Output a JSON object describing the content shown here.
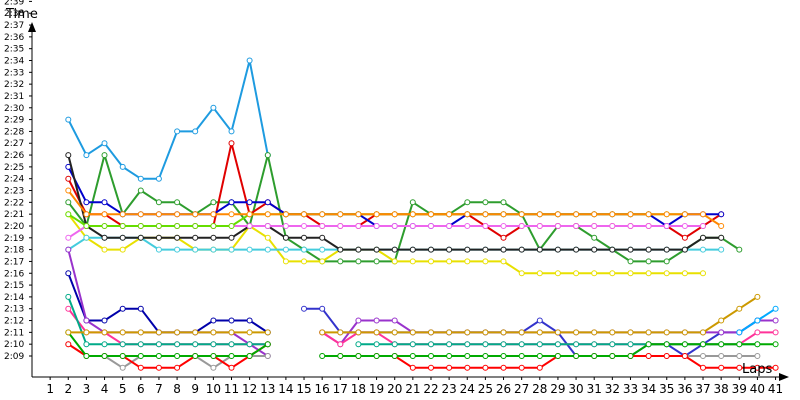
{
  "chart_data": {
    "type": "line",
    "title": "",
    "ylabel": "Time",
    "xlabel": "Laps",
    "x": [
      1,
      2,
      3,
      4,
      5,
      6,
      7,
      8,
      9,
      10,
      11,
      12,
      13,
      14,
      15,
      16,
      17,
      18,
      19,
      20,
      21,
      22,
      23,
      24,
      25,
      26,
      27,
      28,
      29,
      30,
      31,
      32,
      33,
      34,
      35,
      36,
      37,
      38,
      39,
      40,
      41
    ],
    "x_ticks": [
      "1",
      "2",
      "3",
      "4",
      "5",
      "6",
      "7",
      "8",
      "9",
      "10",
      "11",
      "12",
      "13",
      "14",
      "15",
      "16",
      "17",
      "18",
      "19",
      "20",
      "21",
      "22",
      "23",
      "24",
      "25",
      "26",
      "27",
      "28",
      "29",
      "30",
      "31",
      "32",
      "33",
      "34",
      "35",
      "36",
      "37",
      "38",
      "39",
      "40",
      "41"
    ],
    "y_ticks": [
      "2:09",
      "2:10",
      "2:11",
      "2:12",
      "2:13",
      "2:14",
      "2:15",
      "2:16",
      "2:17",
      "2:18",
      "2:19",
      "2:20",
      "2:21",
      "2:22",
      "2:23",
      "2:24",
      "2:25",
      "2:26",
      "2:27",
      "2:28",
      "2:29",
      "2:30",
      "2:31",
      "2:32",
      "2:33",
      "2:34",
      "2:35",
      "2:36",
      "2:37",
      "2:38",
      "2:39"
    ],
    "ylim_seconds": [
      128,
      160
    ],
    "xlim": [
      0,
      41.3
    ],
    "grid": false,
    "legend": "none",
    "series": [
      {
        "color": "#1e9be0",
        "values": [
          null,
          149,
          146,
          147,
          145,
          144,
          144,
          148,
          148,
          150,
          148,
          154,
          146,
          null,
          null,
          null,
          null,
          null,
          null,
          null,
          null,
          null,
          null,
          null,
          null,
          null,
          null,
          null,
          null,
          null,
          null,
          null,
          null,
          null,
          null,
          null,
          null,
          null,
          null,
          null,
          null
        ]
      },
      {
        "color": "#2e9d2e",
        "values": [
          null,
          142,
          140,
          146,
          141,
          143,
          142,
          142,
          141,
          142,
          142,
          140,
          146,
          139,
          138,
          137,
          137,
          137,
          137,
          137,
          142,
          141,
          141,
          142,
          142,
          142,
          141,
          138,
          140,
          140,
          139,
          138,
          137,
          137,
          137,
          138,
          139,
          139,
          138,
          null,
          null
        ]
      },
      {
        "color": "#e00000",
        "values": [
          null,
          144,
          141,
          141,
          140,
          140,
          140,
          140,
          140,
          140,
          147,
          141,
          142,
          141,
          141,
          140,
          140,
          140,
          141,
          141,
          141,
          141,
          141,
          141,
          140,
          139,
          140,
          140,
          140,
          140,
          140,
          140,
          140,
          140,
          140,
          139,
          140,
          141,
          null,
          null,
          null
        ]
      },
      {
        "color": "#0000cc",
        "values": [
          null,
          145,
          142,
          142,
          141,
          141,
          141,
          141,
          141,
          141,
          142,
          142,
          142,
          141,
          141,
          141,
          141,
          141,
          140,
          140,
          140,
          140,
          140,
          141,
          141,
          141,
          141,
          141,
          141,
          141,
          141,
          141,
          141,
          141,
          140,
          141,
          141,
          141,
          null,
          null,
          null
        ]
      },
      {
        "color": "#e8e000",
        "values": [
          null,
          141,
          139,
          138,
          138,
          139,
          139,
          139,
          138,
          138,
          138,
          140,
          139,
          137,
          137,
          137,
          138,
          138,
          138,
          137,
          137,
          137,
          137,
          137,
          137,
          137,
          136,
          136,
          136,
          136,
          136,
          136,
          136,
          136,
          136,
          136,
          136,
          null,
          null,
          null,
          null
        ]
      },
      {
        "color": "#44ccdd",
        "values": [
          null,
          138,
          139,
          139,
          139,
          139,
          138,
          138,
          138,
          138,
          138,
          138,
          138,
          138,
          138,
          138,
          138,
          138,
          138,
          138,
          138,
          138,
          138,
          138,
          138,
          138,
          138,
          138,
          138,
          138,
          138,
          138,
          138,
          138,
          138,
          138,
          138,
          138,
          null,
          null,
          null
        ]
      },
      {
        "color": "#222222",
        "values": [
          null,
          146,
          140,
          139,
          139,
          139,
          139,
          139,
          139,
          139,
          139,
          140,
          140,
          139,
          139,
          139,
          138,
          138,
          138,
          138,
          138,
          138,
          138,
          138,
          138,
          138,
          138,
          138,
          138,
          138,
          138,
          138,
          138,
          138,
          138,
          138,
          139,
          139,
          null,
          null,
          null
        ]
      },
      {
        "color": "#ee66ee",
        "values": [
          null,
          139,
          140,
          140,
          140,
          140,
          140,
          140,
          140,
          140,
          140,
          140,
          140,
          140,
          140,
          140,
          140,
          140,
          140,
          140,
          140,
          140,
          140,
          140,
          140,
          140,
          140,
          140,
          140,
          140,
          140,
          140,
          140,
          140,
          140,
          140,
          140,
          null,
          null,
          null,
          null
        ]
      },
      {
        "color": "#66dd00",
        "values": [
          null,
          141,
          140,
          140,
          140,
          140,
          140,
          140,
          140,
          140,
          140,
          141,
          141,
          141,
          141,
          141,
          141,
          141,
          141,
          141,
          141,
          141,
          141,
          141,
          141,
          141,
          141,
          141,
          141,
          141,
          141,
          141,
          141,
          141,
          141,
          141,
          null,
          null,
          null,
          null,
          null
        ]
      },
      {
        "color": "#ff8800",
        "values": [
          null,
          143,
          141,
          141,
          141,
          141,
          141,
          141,
          141,
          141,
          141,
          141,
          141,
          141,
          141,
          141,
          141,
          141,
          141,
          141,
          141,
          141,
          141,
          141,
          141,
          141,
          141,
          141,
          141,
          141,
          141,
          141,
          141,
          141,
          141,
          141,
          141,
          140,
          null,
          null,
          null
        ]
      },
      {
        "color": "#0000aa",
        "values": [
          null,
          136,
          132,
          132,
          133,
          133,
          131,
          131,
          131,
          132,
          132,
          132,
          131,
          null,
          null,
          null,
          null,
          null,
          null,
          null,
          null,
          null,
          null,
          null,
          null,
          null,
          null,
          null,
          null,
          null,
          null,
          null,
          null,
          null,
          null,
          null,
          null,
          null,
          null,
          null,
          null
        ]
      },
      {
        "color": "#3333cc",
        "values": [
          null,
          null,
          null,
          null,
          null,
          null,
          null,
          null,
          null,
          null,
          null,
          null,
          null,
          null,
          133,
          133,
          131,
          131,
          131,
          131,
          131,
          131,
          131,
          131,
          131,
          131,
          131,
          132,
          131,
          129,
          129,
          129,
          129,
          130,
          130,
          129,
          130,
          131,
          131,
          132,
          null
        ]
      },
      {
        "color": "#9933cc",
        "values": [
          null,
          138,
          132,
          131,
          131,
          131,
          131,
          131,
          131,
          131,
          131,
          130,
          129,
          null,
          null,
          131,
          130,
          132,
          132,
          132,
          131,
          131,
          131,
          131,
          131,
          131,
          131,
          131,
          131,
          131,
          131,
          131,
          131,
          131,
          131,
          131,
          131,
          131,
          131,
          132,
          132
        ]
      },
      {
        "color": "#ff3399",
        "values": [
          null,
          133,
          131,
          131,
          130,
          130,
          130,
          130,
          130,
          130,
          130,
          130,
          130,
          null,
          null,
          131,
          130,
          131,
          131,
          130,
          130,
          130,
          130,
          130,
          130,
          130,
          130,
          130,
          130,
          130,
          130,
          130,
          130,
          130,
          130,
          130,
          130,
          130,
          130,
          131,
          131
        ]
      },
      {
        "color": "#00aa88",
        "values": [
          null,
          134,
          130,
          130,
          130,
          130,
          130,
          130,
          130,
          130,
          130,
          130,
          130,
          null,
          null,
          null,
          null,
          130,
          130,
          130,
          130,
          130,
          130,
          130,
          130,
          130,
          130,
          130,
          130,
          130,
          130,
          130,
          130,
          130,
          130,
          130,
          130,
          130,
          130,
          130,
          null
        ]
      },
      {
        "color": "#999999",
        "values": [
          null,
          130,
          129,
          129,
          128,
          129,
          129,
          129,
          129,
          128,
          129,
          129,
          129,
          null,
          null,
          129,
          129,
          129,
          129,
          129,
          129,
          129,
          129,
          129,
          129,
          129,
          129,
          129,
          129,
          129,
          129,
          129,
          129,
          129,
          129,
          129,
          129,
          129,
          129,
          129,
          null
        ]
      },
      {
        "color": "#ff0000",
        "values": [
          null,
          130,
          129,
          129,
          129,
          128,
          128,
          128,
          129,
          129,
          128,
          129,
          130,
          null,
          null,
          null,
          129,
          129,
          129,
          129,
          128,
          128,
          128,
          128,
          128,
          128,
          128,
          128,
          129,
          129,
          129,
          129,
          129,
          129,
          129,
          129,
          128,
          128,
          128,
          128,
          128
        ]
      },
      {
        "color": "#00aa00",
        "values": [
          null,
          131,
          129,
          129,
          129,
          129,
          129,
          129,
          129,
          129,
          129,
          129,
          130,
          null,
          null,
          129,
          129,
          129,
          129,
          129,
          129,
          129,
          129,
          129,
          129,
          129,
          129,
          129,
          129,
          129,
          129,
          129,
          129,
          130,
          130,
          130,
          130,
          130,
          130,
          130,
          130
        ]
      },
      {
        "color": "#00aaff",
        "values": [
          null,
          null,
          null,
          null,
          null,
          null,
          null,
          null,
          null,
          null,
          null,
          null,
          null,
          null,
          null,
          null,
          null,
          null,
          null,
          null,
          null,
          null,
          null,
          null,
          null,
          null,
          null,
          null,
          null,
          null,
          null,
          null,
          null,
          null,
          null,
          null,
          null,
          null,
          131,
          132,
          133
        ]
      },
      {
        "color": "#cc9900",
        "values": [
          null,
          131,
          131,
          131,
          131,
          131,
          131,
          131,
          131,
          131,
          131,
          131,
          131,
          null,
          null,
          131,
          131,
          131,
          131,
          131,
          131,
          131,
          131,
          131,
          131,
          131,
          131,
          131,
          131,
          131,
          131,
          131,
          131,
          131,
          131,
          131,
          131,
          132,
          133,
          134,
          null
        ]
      }
    ]
  }
}
